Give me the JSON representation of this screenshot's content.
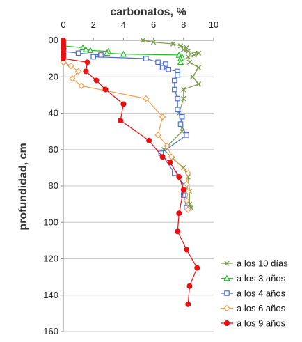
{
  "chart_data": {
    "type": "line",
    "xlabel": "carbonatos,  %",
    "ylabel": "profundidad,  cm",
    "x_axis_position": "top",
    "y_axis_inverted": true,
    "xlim": [
      0,
      10
    ],
    "ylim": [
      0,
      160
    ],
    "x_ticks": [
      "0",
      "2",
      "4",
      "6",
      "8",
      "10"
    ],
    "y_ticks": [
      "00",
      "20",
      "40",
      "60",
      "80",
      "100",
      "120",
      "140",
      "160"
    ],
    "grid": "horizontal",
    "legend_position": "bottom-right",
    "series": [
      {
        "name": "a los 10 días",
        "color": "#7a9a4a",
        "marker": "x",
        "points": [
          [
            5.3,
            0
          ],
          [
            6.0,
            1
          ],
          [
            7.3,
            2
          ],
          [
            7.8,
            3
          ],
          [
            8.2,
            4
          ],
          [
            8.0,
            5
          ],
          [
            8.3,
            6
          ],
          [
            9.0,
            7
          ],
          [
            8.7,
            8
          ],
          [
            8.3,
            9
          ],
          [
            8.4,
            12
          ],
          [
            9.0,
            15
          ],
          [
            8.6,
            20
          ],
          [
            9.0,
            24
          ],
          [
            8.0,
            27
          ],
          [
            8.0,
            32
          ],
          [
            7.7,
            40
          ],
          [
            7.8,
            46
          ],
          [
            7.9,
            50
          ],
          [
            6.7,
            60
          ],
          [
            7.3,
            65
          ],
          [
            8.0,
            70
          ],
          [
            8.3,
            75
          ],
          [
            8.4,
            83
          ],
          [
            8.4,
            90
          ],
          [
            8.5,
            92
          ]
        ]
      },
      {
        "name": "a los 3 años",
        "color": "#22bb22",
        "marker": "triangle",
        "points": [
          [
            0,
            3
          ],
          [
            1.3,
            4
          ],
          [
            1.5,
            5
          ],
          [
            1.8,
            5.5
          ],
          [
            3.0,
            6
          ],
          [
            2.9,
            7
          ],
          [
            4.0,
            7.5
          ],
          [
            7.7,
            8
          ],
          [
            7.9,
            9
          ],
          [
            7.8,
            10
          ],
          [
            7.8,
            12
          ]
        ]
      },
      {
        "name": "a los 4 años",
        "color": "#4a6fd0",
        "marker": "square",
        "points": [
          [
            0,
            6
          ],
          [
            1.0,
            7
          ],
          [
            2.5,
            8
          ],
          [
            2.0,
            9
          ],
          [
            5.5,
            10
          ],
          [
            6.3,
            12
          ],
          [
            6.8,
            13
          ],
          [
            6.6,
            15
          ],
          [
            7.0,
            16
          ],
          [
            7.6,
            17
          ],
          [
            7.6,
            19
          ],
          [
            7.4,
            22
          ],
          [
            7.4,
            27
          ],
          [
            7.6,
            32
          ],
          [
            7.6,
            38
          ],
          [
            7.9,
            42
          ],
          [
            7.8,
            46
          ],
          [
            8.2,
            52
          ],
          [
            6.5,
            62
          ],
          [
            7.4,
            73
          ],
          [
            8.1,
            80
          ],
          [
            8.0,
            85
          ],
          [
            8.2,
            92
          ]
        ]
      },
      {
        "name": "a los 6 años",
        "color": "#f0a050",
        "marker": "diamond",
        "points": [
          [
            0,
            12
          ],
          [
            0.5,
            14
          ],
          [
            1.0,
            17
          ],
          [
            0.6,
            21
          ],
          [
            1.2,
            25
          ],
          [
            5.5,
            32
          ],
          [
            6.6,
            42
          ],
          [
            6.3,
            52
          ],
          [
            6.9,
            58
          ],
          [
            7.2,
            64
          ],
          [
            8.3,
            73
          ],
          [
            8.2,
            79
          ],
          [
            8.3,
            83
          ],
          [
            8.2,
            88
          ],
          [
            8.3,
            93
          ]
        ]
      },
      {
        "name": "a los 9 años",
        "color": "#e81010",
        "marker": "circle",
        "points": [
          [
            0,
            0
          ],
          [
            0,
            1
          ],
          [
            0,
            2
          ],
          [
            0,
            3
          ],
          [
            0,
            4
          ],
          [
            0,
            5
          ],
          [
            0,
            6
          ],
          [
            0,
            7
          ],
          [
            0,
            8
          ],
          [
            0,
            9
          ],
          [
            0,
            10
          ],
          [
            1.6,
            12
          ],
          [
            1.5,
            17
          ],
          [
            2.2,
            22
          ],
          [
            2.8,
            27
          ],
          [
            4.0,
            35
          ],
          [
            3.8,
            44
          ],
          [
            5.7,
            55
          ],
          [
            6.6,
            64
          ],
          [
            7.1,
            67
          ],
          [
            7.7,
            75
          ],
          [
            8.0,
            82
          ],
          [
            7.7,
            95
          ],
          [
            7.6,
            105
          ],
          [
            8.2,
            115
          ],
          [
            8.9,
            125
          ],
          [
            8.4,
            135
          ],
          [
            8.3,
            145
          ]
        ]
      }
    ]
  }
}
